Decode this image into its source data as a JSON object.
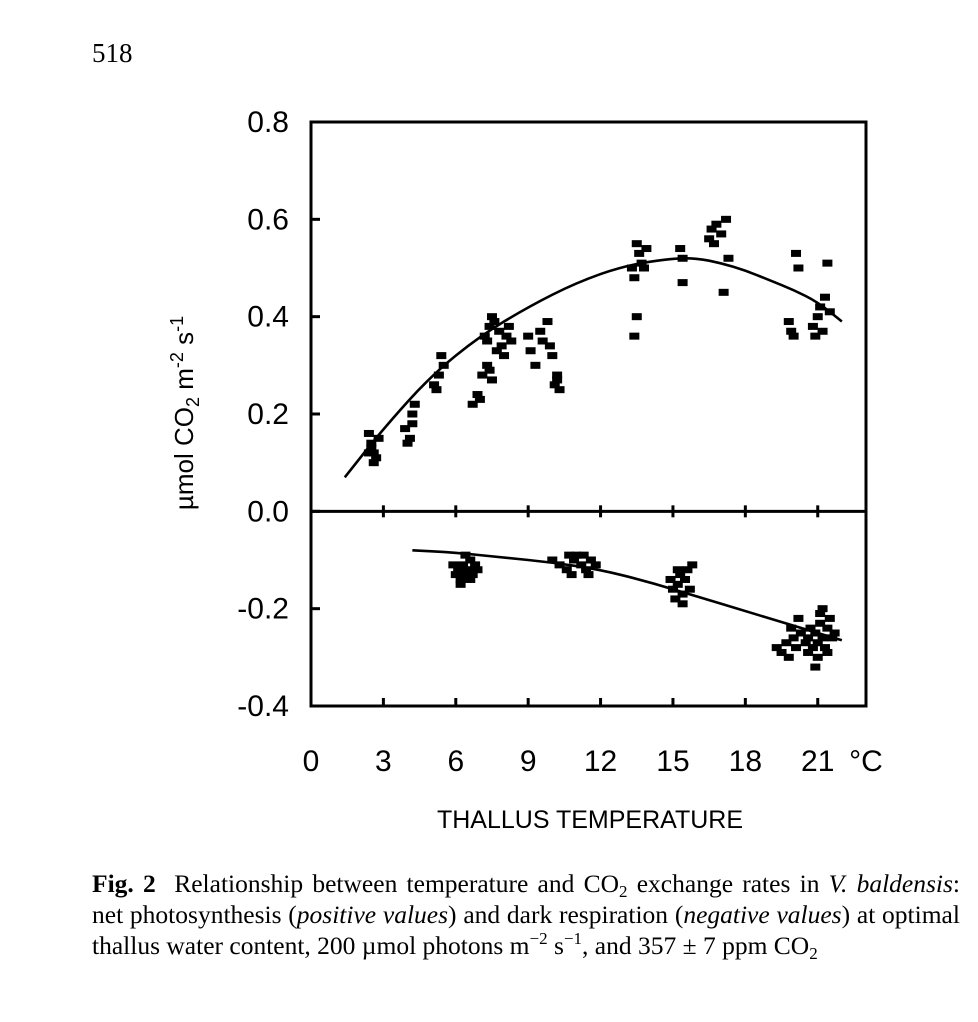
{
  "page_number": "518",
  "caption": {
    "label": "Fig. 2",
    "text_1": "Relationship between temperature and CO",
    "sub_1": "2",
    "text_2": " exchange rates in ",
    "species": "V. baldensis",
    "text_3": ": net photosynthesis (",
    "italic_1": "positive values",
    "text_4": ") and dark respiration (",
    "italic_2": "negative values",
    "text_5": ") at optimal thallus water content, 200 µmol photons m",
    "sup_1": "−2",
    "text_6": " s",
    "sup_2": "−1",
    "text_7": ", and 357 ± 7 ppm CO",
    "sub_2": "2"
  },
  "chart_data": {
    "type": "scatter",
    "xlabel": "THALLUS TEMPERATURE",
    "x_unit": "°C",
    "ylabel": "µmol CO2 m-2 s-1",
    "ylabel_parts": {
      "a": "µmol CO",
      "b": "2",
      "c": " m",
      "d": "-2",
      "e": " s",
      "f": "-1"
    },
    "xlim": [
      0,
      23
    ],
    "ylim": [
      -0.4,
      0.8
    ],
    "x_ticks": [
      0,
      3,
      6,
      9,
      12,
      15,
      18,
      21
    ],
    "y_ticks": [
      -0.4,
      -0.2,
      0.0,
      0.2,
      0.4,
      0.6,
      0.8
    ],
    "y_tick_labels": [
      "-0.4",
      "-0.2",
      "0.0",
      "0.2",
      "0.4",
      "0.6",
      "0.8"
    ],
    "grid": false,
    "series": [
      {
        "points": [
          [
            2.4,
            0.16
          ],
          [
            2.5,
            0.14
          ],
          [
            2.6,
            0.12
          ],
          [
            2.7,
            0.11
          ],
          [
            2.5,
            0.13
          ],
          [
            2.8,
            0.15
          ],
          [
            2.4,
            0.12
          ],
          [
            2.6,
            0.1
          ],
          [
            3.9,
            0.17
          ],
          [
            4.0,
            0.14
          ],
          [
            4.2,
            0.2
          ],
          [
            4.3,
            0.22
          ],
          [
            4.2,
            0.18
          ],
          [
            4.1,
            0.15
          ],
          [
            5.1,
            0.26
          ],
          [
            5.3,
            0.28
          ],
          [
            5.4,
            0.32
          ],
          [
            5.2,
            0.25
          ],
          [
            5.5,
            0.3
          ],
          [
            6.7,
            0.22
          ],
          [
            6.9,
            0.24
          ],
          [
            7.0,
            0.23
          ],
          [
            7.1,
            0.28
          ],
          [
            7.3,
            0.3
          ],
          [
            7.4,
            0.29
          ],
          [
            7.2,
            0.36
          ],
          [
            7.4,
            0.38
          ],
          [
            7.5,
            0.4
          ],
          [
            7.6,
            0.39
          ],
          [
            7.8,
            0.37
          ],
          [
            7.9,
            0.34
          ],
          [
            8.0,
            0.32
          ],
          [
            8.1,
            0.36
          ],
          [
            8.2,
            0.38
          ],
          [
            8.3,
            0.35
          ],
          [
            7.7,
            0.33
          ],
          [
            7.5,
            0.27
          ],
          [
            7.3,
            0.35
          ],
          [
            9.0,
            0.36
          ],
          [
            9.1,
            0.33
          ],
          [
            9.3,
            0.3
          ],
          [
            9.5,
            0.37
          ],
          [
            9.6,
            0.35
          ],
          [
            9.8,
            0.39
          ],
          [
            9.9,
            0.34
          ],
          [
            10.0,
            0.32
          ],
          [
            10.1,
            0.26
          ],
          [
            10.2,
            0.28
          ],
          [
            10.3,
            0.25
          ],
          [
            10.2,
            0.27
          ],
          [
            13.3,
            0.5
          ],
          [
            13.4,
            0.48
          ],
          [
            13.5,
            0.55
          ],
          [
            13.6,
            0.53
          ],
          [
            13.7,
            0.51
          ],
          [
            13.8,
            0.5
          ],
          [
            13.9,
            0.54
          ],
          [
            13.5,
            0.4
          ],
          [
            13.4,
            0.36
          ],
          [
            15.3,
            0.54
          ],
          [
            15.4,
            0.52
          ],
          [
            15.4,
            0.47
          ],
          [
            16.5,
            0.56
          ],
          [
            16.6,
            0.58
          ],
          [
            16.7,
            0.55
          ],
          [
            16.8,
            0.59
          ],
          [
            17.0,
            0.57
          ],
          [
            17.2,
            0.6
          ],
          [
            17.3,
            0.52
          ],
          [
            17.1,
            0.45
          ],
          [
            19.8,
            0.39
          ],
          [
            19.9,
            0.37
          ],
          [
            20.0,
            0.36
          ],
          [
            20.1,
            0.53
          ],
          [
            20.2,
            0.5
          ],
          [
            20.8,
            0.38
          ],
          [
            20.9,
            0.36
          ],
          [
            21.0,
            0.4
          ],
          [
            21.1,
            0.42
          ],
          [
            21.2,
            0.37
          ],
          [
            21.3,
            0.44
          ],
          [
            21.4,
            0.51
          ],
          [
            21.5,
            0.41
          ]
        ]
      },
      {
        "points": [
          [
            5.9,
            -0.11
          ],
          [
            6.0,
            -0.13
          ],
          [
            6.1,
            -0.12
          ],
          [
            6.2,
            -0.14
          ],
          [
            6.3,
            -0.11
          ],
          [
            6.4,
            -0.13
          ],
          [
            6.5,
            -0.12
          ],
          [
            6.6,
            -0.14
          ],
          [
            6.7,
            -0.13
          ],
          [
            6.8,
            -0.11
          ],
          [
            6.4,
            -0.09
          ],
          [
            6.2,
            -0.15
          ],
          [
            6.6,
            -0.1
          ],
          [
            6.9,
            -0.12
          ],
          [
            10.0,
            -0.1
          ],
          [
            10.3,
            -0.11
          ],
          [
            10.6,
            -0.12
          ],
          [
            10.8,
            -0.13
          ],
          [
            10.9,
            -0.1
          ],
          [
            11.0,
            -0.09
          ],
          [
            11.2,
            -0.11
          ],
          [
            11.4,
            -0.12
          ],
          [
            11.6,
            -0.1
          ],
          [
            11.8,
            -0.11
          ],
          [
            11.3,
            -0.09
          ],
          [
            11.5,
            -0.13
          ],
          [
            10.7,
            -0.09
          ],
          [
            14.9,
            -0.14
          ],
          [
            15.0,
            -0.16
          ],
          [
            15.1,
            -0.18
          ],
          [
            15.2,
            -0.15
          ],
          [
            15.3,
            -0.13
          ],
          [
            15.4,
            -0.17
          ],
          [
            15.5,
            -0.14
          ],
          [
            15.6,
            -0.12
          ],
          [
            15.7,
            -0.16
          ],
          [
            15.8,
            -0.11
          ],
          [
            15.4,
            -0.19
          ],
          [
            15.2,
            -0.12
          ],
          [
            19.3,
            -0.28
          ],
          [
            19.5,
            -0.29
          ],
          [
            19.7,
            -0.27
          ],
          [
            19.8,
            -0.3
          ],
          [
            19.9,
            -0.24
          ],
          [
            20.0,
            -0.26
          ],
          [
            20.1,
            -0.28
          ],
          [
            20.2,
            -0.22
          ],
          [
            20.3,
            -0.25
          ],
          [
            20.5,
            -0.27
          ],
          [
            20.6,
            -0.26
          ],
          [
            20.7,
            -0.24
          ],
          [
            20.8,
            -0.28
          ],
          [
            20.9,
            -0.25
          ],
          [
            21.0,
            -0.27
          ],
          [
            21.1,
            -0.23
          ],
          [
            21.2,
            -0.26
          ],
          [
            21.3,
            -0.28
          ],
          [
            21.4,
            -0.24
          ],
          [
            21.5,
            -0.22
          ],
          [
            21.6,
            -0.26
          ],
          [
            21.0,
            -0.3
          ],
          [
            20.9,
            -0.32
          ],
          [
            21.2,
            -0.2
          ],
          [
            21.4,
            -0.29
          ],
          [
            20.6,
            -0.29
          ],
          [
            21.7,
            -0.25
          ],
          [
            21.1,
            -0.21
          ]
        ]
      }
    ],
    "fit_curves": [
      {
        "points": [
          [
            1.4,
            0.07
          ],
          [
            3,
            0.17
          ],
          [
            5,
            0.28
          ],
          [
            7,
            0.36
          ],
          [
            9,
            0.42
          ],
          [
            11,
            0.47
          ],
          [
            13,
            0.505
          ],
          [
            15,
            0.52
          ],
          [
            16,
            0.52
          ],
          [
            17,
            0.51
          ],
          [
            18,
            0.495
          ],
          [
            19,
            0.475
          ],
          [
            20,
            0.455
          ],
          [
            21,
            0.43
          ],
          [
            22.0,
            0.39
          ]
        ]
      },
      {
        "points": [
          [
            4.2,
            -0.08
          ],
          [
            6,
            -0.085
          ],
          [
            8,
            -0.095
          ],
          [
            10,
            -0.105
          ],
          [
            12,
            -0.12
          ],
          [
            14,
            -0.145
          ],
          [
            16,
            -0.175
          ],
          [
            18,
            -0.205
          ],
          [
            20,
            -0.235
          ],
          [
            22.0,
            -0.265
          ]
        ]
      }
    ]
  }
}
